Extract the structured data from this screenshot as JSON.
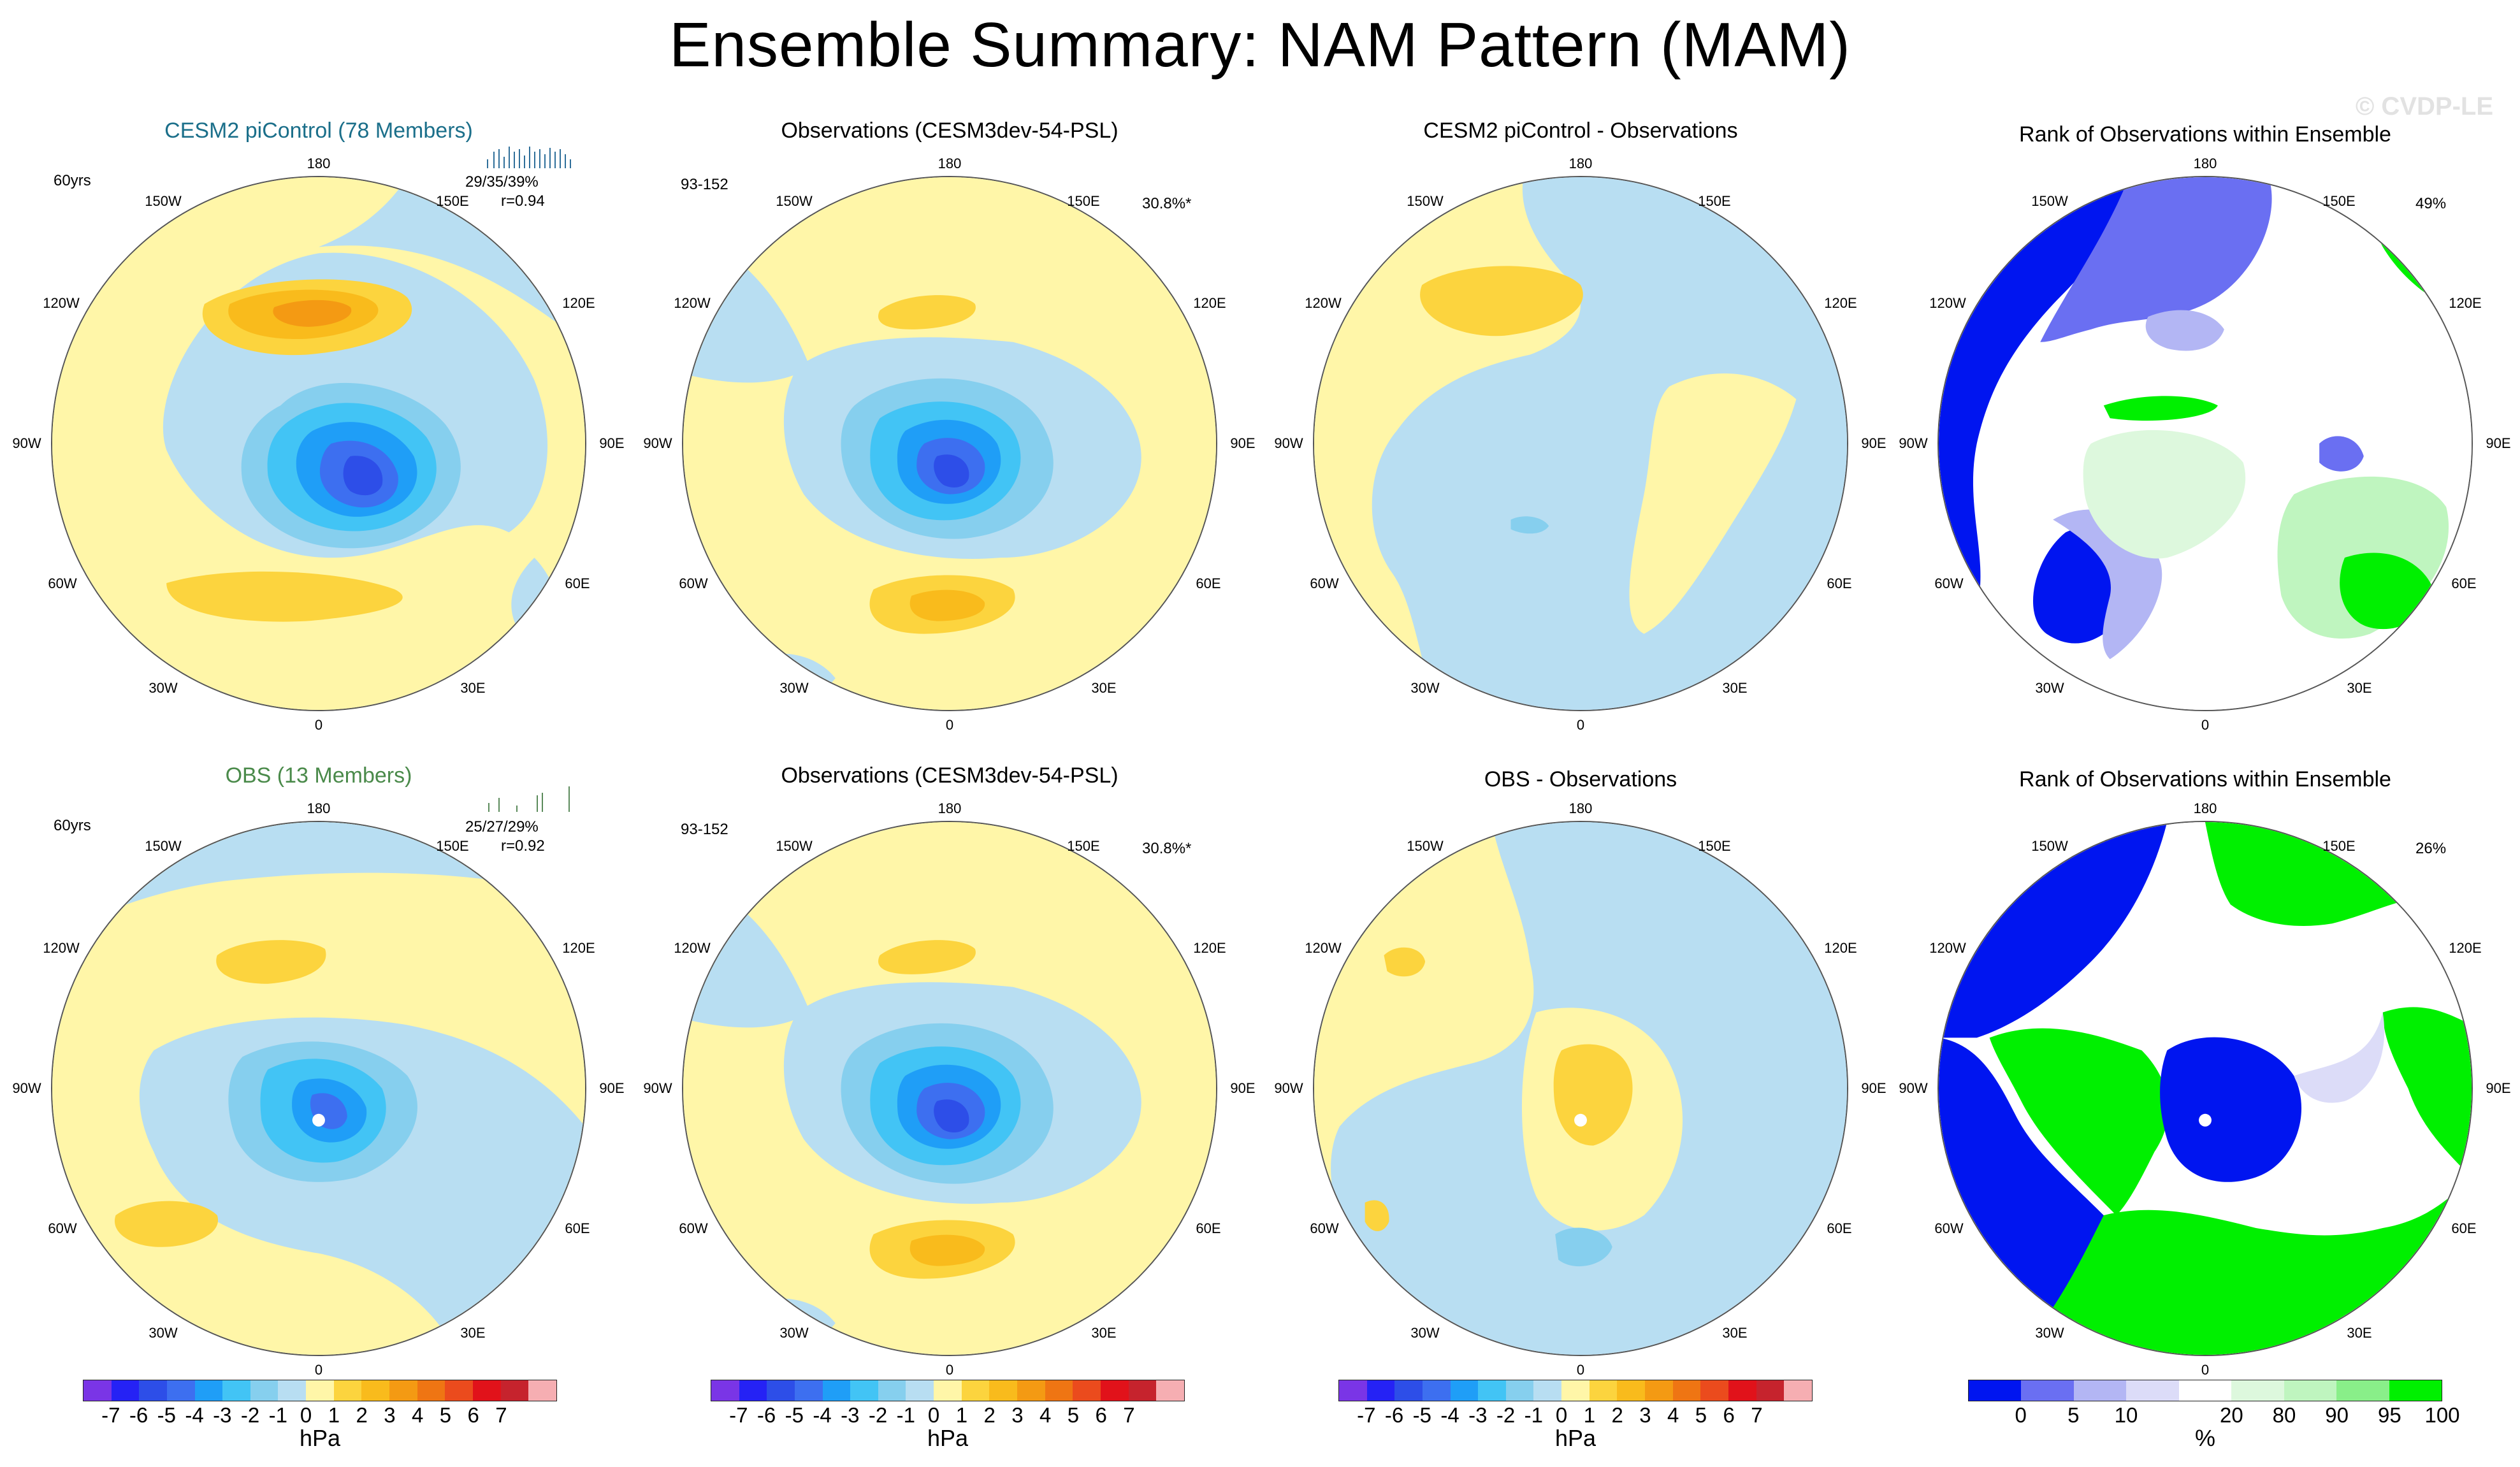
{
  "title": "Ensemble Summary: NAM Pattern (MAM)",
  "watermark": "© CVDP-LE",
  "colors": {
    "psl_scale": [
      "#7a35e6",
      "#2522f5",
      "#2d4ee8",
      "#3d6ff0",
      "#1f9ef7",
      "#42c4f5",
      "#86cfee",
      "#b8def2",
      "#fff6a8",
      "#fcd43e",
      "#f9bb1c",
      "#f49a13",
      "#ef7513",
      "#eb4b1d",
      "#e1121a",
      "#c6232d",
      "#f6aeb2"
    ],
    "rank_scale": [
      "#0015f0",
      "#6a6ff2",
      "#b3b6f4",
      "#dcdcf8",
      "#ffffff",
      "#ddf8dd",
      "#bff5bf",
      "#89ef89",
      "#00f000"
    ],
    "cesm_title": "#1b6f8a",
    "obs_title": "#4a8a4a"
  },
  "rows": [
    {
      "panels": [
        {
          "title": "CESM2 piControl (78 Members)",
          "left_label": "60yrs",
          "right_label": "29/35/39%",
          "right_label2": "r=0.94"
        },
        {
          "title": "Observations (CESM3dev-54-PSL)",
          "left_label": "93-152",
          "right_label": "30.8%*"
        },
        {
          "title": "CESM2 piControl - Observations"
        },
        {
          "title": "Rank of Observations within Ensemble",
          "right_label": "49%"
        }
      ]
    },
    {
      "panels": [
        {
          "title": "OBS (13 Members)",
          "left_label": "60yrs",
          "right_label": "25/27/29%",
          "right_label2": "r=0.92"
        },
        {
          "title": "Observations (CESM3dev-54-PSL)",
          "left_label": "93-152",
          "right_label": "30.8%*"
        },
        {
          "title": "OBS - Observations"
        },
        {
          "title": "Rank of Observations within Ensemble",
          "right_label": "26%"
        }
      ]
    }
  ],
  "longitude_labels": [
    "180",
    "150E",
    "120E",
    "90E",
    "60E",
    "30E",
    "0",
    "30W",
    "60W",
    "90W",
    "120W",
    "150W"
  ],
  "colorbars": {
    "psl_ticks": [
      "-7",
      "-6",
      "-5",
      "-4",
      "-3",
      "-2",
      "-1",
      "0",
      "1",
      "2",
      "3",
      "4",
      "5",
      "6",
      "7"
    ],
    "psl_unit": "hPa",
    "rank_ticks": [
      "0",
      "5",
      "10",
      "20",
      "80",
      "90",
      "95",
      "100"
    ],
    "rank_unit": "%"
  },
  "chart_data": {
    "type": "heatmap",
    "description": "Eight polar-stereographic maps of the Northern Annular Mode sea-level-pressure pattern (MAM)",
    "units": "hPa",
    "contour_levels": [
      -7,
      -6,
      -5,
      -4,
      -3,
      -2,
      -1,
      0,
      1,
      2,
      3,
      4,
      5,
      6,
      7
    ],
    "rank_levels": [
      0,
      5,
      10,
      20,
      80,
      90,
      95,
      100
    ],
    "panels": [
      {
        "name": "CESM2 piControl (78 Members)",
        "center_min_hpa": -6,
        "pacific_max_hpa": 4,
        "atlantic_max_hpa": 2
      },
      {
        "name": "Observations (CESM3dev-54-PSL)",
        "center_min_hpa": -6,
        "pacific_max_hpa": 2,
        "atlantic_max_hpa": 3,
        "pct_variance": "30.8%*"
      },
      {
        "name": "CESM2 piControl - Observations",
        "center_min_hpa": -1,
        "pacific_max_hpa": 2
      },
      {
        "name": "Rank of Observations within Ensemble",
        "rank_summary": "49%"
      },
      {
        "name": "OBS (13 Members)",
        "center_min_hpa": -5,
        "pacific_max_hpa": 2,
        "atlantic_max_hpa": 2
      },
      {
        "name": "Observations (CESM3dev-54-PSL)",
        "center_min_hpa": -6,
        "pacific_max_hpa": 2,
        "atlantic_max_hpa": 3,
        "pct_variance": "30.8%*"
      },
      {
        "name": "OBS - Observations",
        "center_max_hpa": 2,
        "atlantic_min_hpa": -1
      },
      {
        "name": "Rank of Observations within Ensemble",
        "rank_summary": "26%"
      }
    ]
  }
}
